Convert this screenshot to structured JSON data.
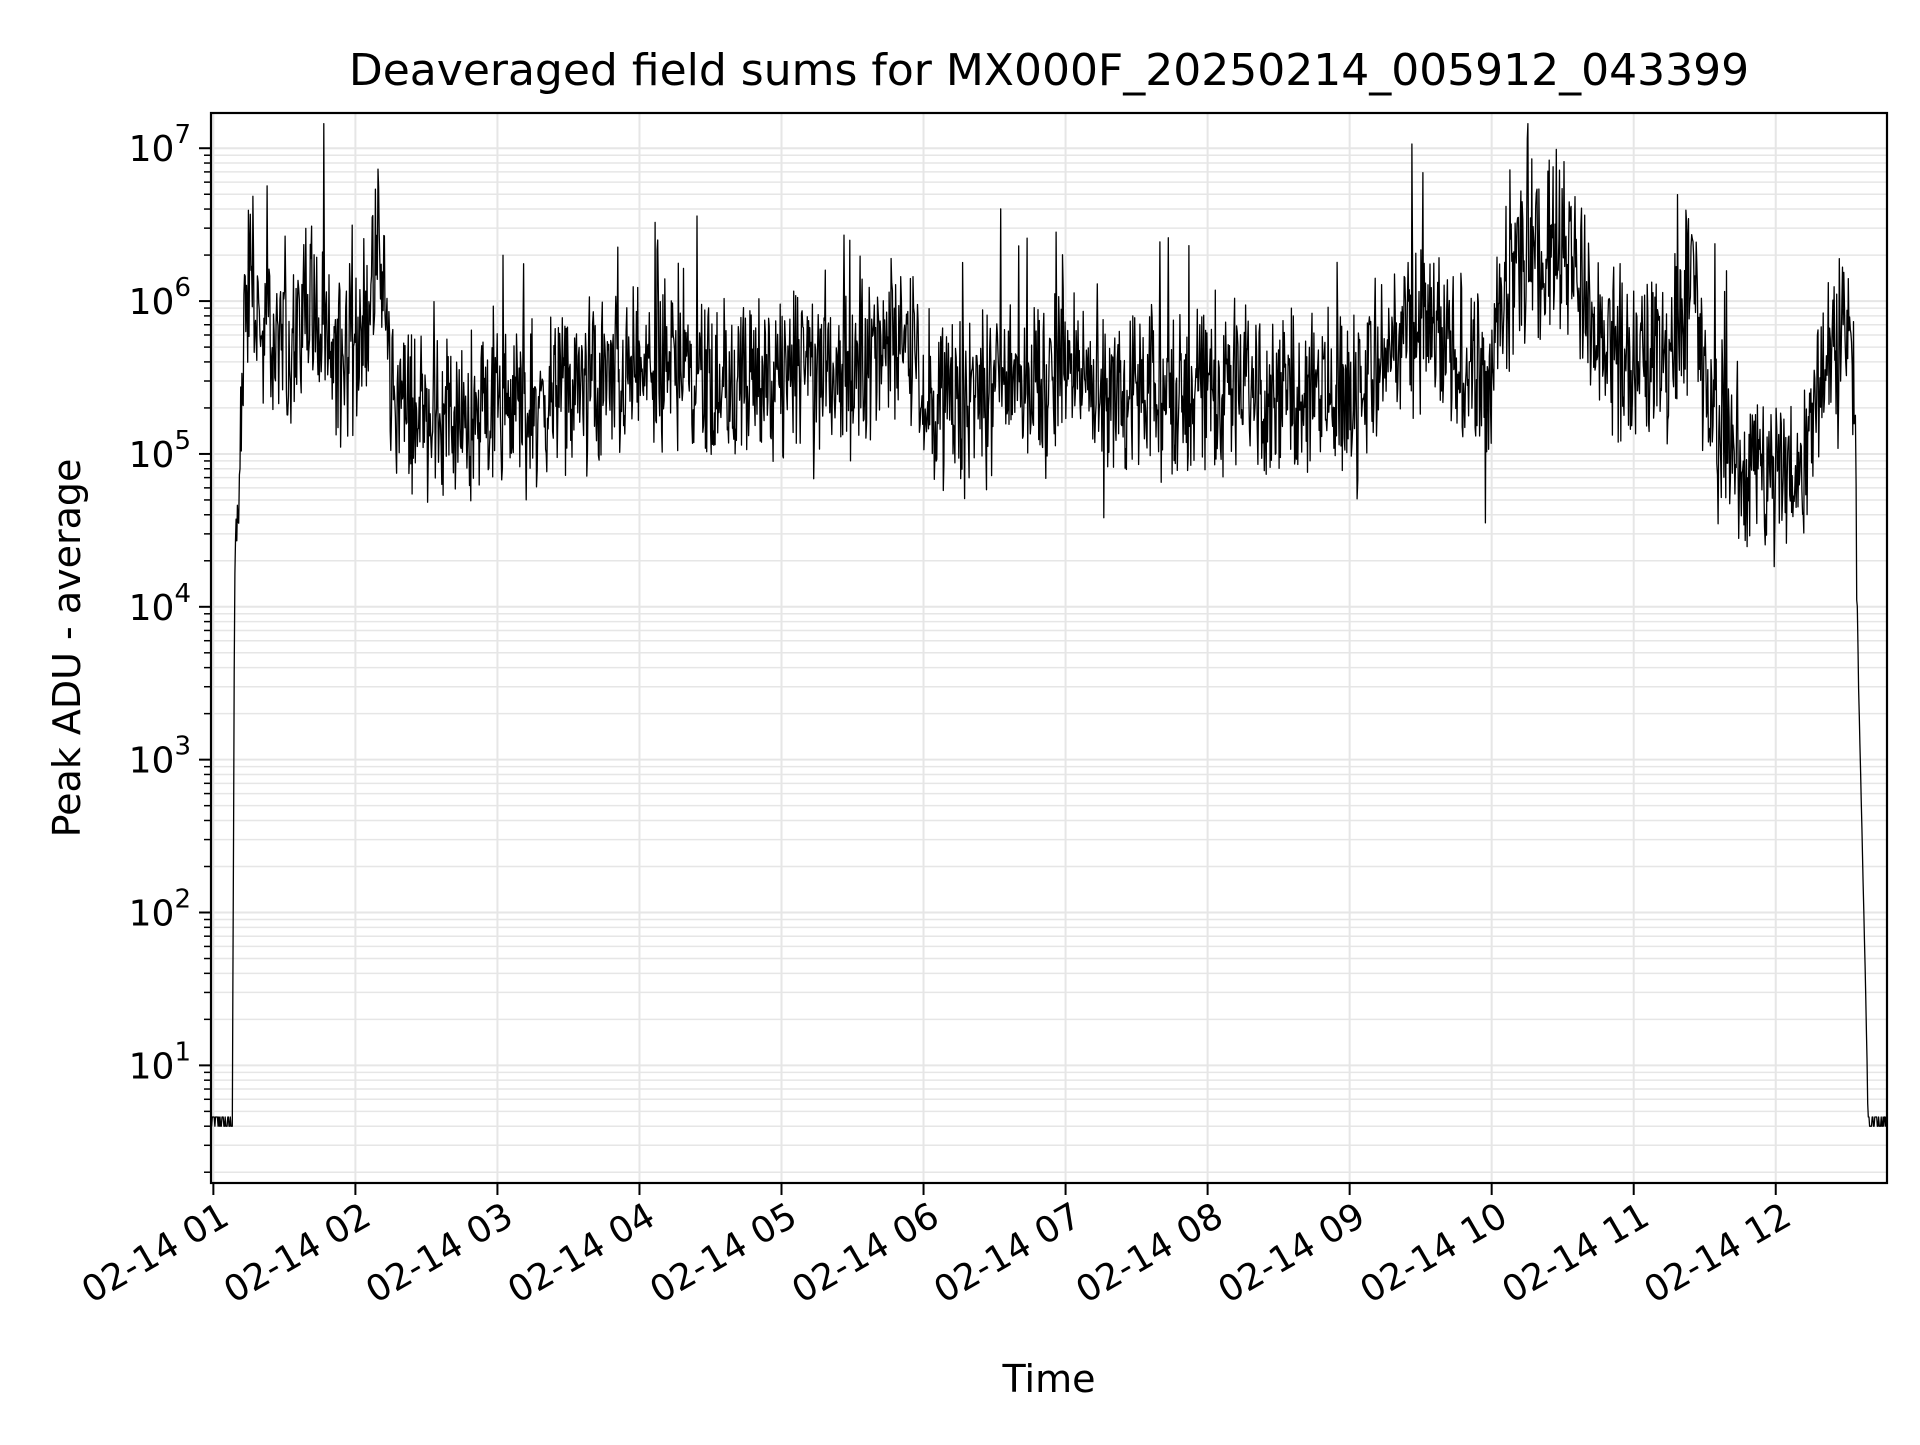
{
  "chart_data": {
    "type": "line",
    "title": "Deaveraged field sums for MX000F_20250214_005912_043399",
    "xlabel": "Time",
    "ylabel": "Peak ADU - average",
    "yscale": "log",
    "ylim": [
      1.7,
      17000000
    ],
    "xlim": [
      "2025-02-14 00:59",
      "2025-02-14 12:47"
    ],
    "grid": true,
    "legend": "none",
    "line_color": "#000000",
    "grid_color": "#e6e6e6",
    "x_ticks": [
      "02-14 01",
      "02-14 02",
      "02-14 03",
      "02-14 04",
      "02-14 05",
      "02-14 06",
      "02-14 07",
      "02-14 08",
      "02-14 09",
      "02-14 10",
      "02-14 11",
      "02-14 12"
    ],
    "y_ticks": [
      {
        "base": "10",
        "exp": "1",
        "value": 10
      },
      {
        "base": "10",
        "exp": "2",
        "value": 100
      },
      {
        "base": "10",
        "exp": "3",
        "value": 1000
      },
      {
        "base": "10",
        "exp": "4",
        "value": 10000
      },
      {
        "base": "10",
        "exp": "5",
        "value": 100000
      },
      {
        "base": "10",
        "exp": "6",
        "value": 1000000
      },
      {
        "base": "10",
        "exp": "7",
        "value": 10000000
      }
    ],
    "series": [
      {
        "x": [
          "2025-02-14 00:59",
          "2025-02-14 01:05",
          "2025-02-14 01:08",
          "2025-02-14 01:09",
          "2025-02-14 01:10",
          "2025-02-14 01:12",
          "2025-02-14 01:14",
          "2025-02-14 01:16",
          "2025-02-14 01:17",
          "2025-02-14 01:19",
          "2025-02-14 01:22",
          "2025-02-14 01:25",
          "2025-02-14 01:30",
          "2025-02-14 01:35",
          "2025-02-14 01:40",
          "2025-02-14 01:45",
          "2025-02-14 01:50",
          "2025-02-14 01:55",
          "2025-02-14 02:00",
          "2025-02-14 02:05",
          "2025-02-14 02:10",
          "2025-02-14 02:15",
          "2025-02-14 02:20",
          "2025-02-14 02:30",
          "2025-02-14 02:40",
          "2025-02-14 02:50",
          "2025-02-14 03:00",
          "2025-02-14 03:15",
          "2025-02-14 03:30",
          "2025-02-14 03:45",
          "2025-02-14 04:00",
          "2025-02-14 04:15",
          "2025-02-14 04:30",
          "2025-02-14 04:45",
          "2025-02-14 05:00",
          "2025-02-14 05:15",
          "2025-02-14 05:30",
          "2025-02-14 05:45",
          "2025-02-14 05:52",
          "2025-02-14 06:00",
          "2025-02-14 06:15",
          "2025-02-14 06:30",
          "2025-02-14 06:45",
          "2025-02-14 07:00",
          "2025-02-14 07:15",
          "2025-02-14 07:30",
          "2025-02-14 07:45",
          "2025-02-14 08:00",
          "2025-02-14 08:15",
          "2025-02-14 08:30",
          "2025-02-14 08:45",
          "2025-02-14 09:00",
          "2025-02-14 09:10",
          "2025-02-14 09:20",
          "2025-02-14 09:30",
          "2025-02-14 09:40",
          "2025-02-14 09:50",
          "2025-02-14 10:00",
          "2025-02-14 10:05",
          "2025-02-14 10:15",
          "2025-02-14 10:25",
          "2025-02-14 10:35",
          "2025-02-14 10:45",
          "2025-02-14 10:55",
          "2025-02-14 11:05",
          "2025-02-14 11:15",
          "2025-02-14 11:25",
          "2025-02-14 11:30",
          "2025-02-14 11:35",
          "2025-02-14 11:40",
          "2025-02-14 11:42",
          "2025-02-14 11:44",
          "2025-02-14 11:45",
          "2025-02-14 11:46",
          "2025-02-14 11:47",
          "2025-02-14 12:00",
          "2025-02-14 12:10",
          "2025-02-14 12:20",
          "2025-02-14 12:28",
          "2025-02-14 12:33",
          "2025-02-14 12:35",
          "2025-02-14 12:38",
          "2025-02-14 12:39",
          "2025-02-14 12:40",
          "2025-02-14 12:47"
        ],
        "y": [
          4,
          4,
          4,
          20000,
          30000,
          300000,
          1000000,
          2000000,
          1500000,
          700000,
          500000,
          600000,
          500000,
          500000,
          1500000,
          600000,
          400000,
          500000,
          500000,
          900000,
          2000000,
          300000,
          200000,
          200000,
          150000,
          180000,
          200000,
          200000,
          250000,
          300000,
          350000,
          400000,
          350000,
          250000,
          300000,
          400000,
          350000,
          500000,
          800000,
          250000,
          200000,
          300000,
          300000,
          350000,
          300000,
          220000,
          250000,
          300000,
          300000,
          250000,
          280000,
          250000,
          350000,
          600000,
          700000,
          500000,
          400000,
          300000,
          1000000,
          2000000,
          2500000,
          2000000,
          500000,
          400000,
          450000,
          500000,
          1500000,
          250000,
          200000,
          100000,
          80000,
          90000,
          100000,
          80000,
          90000,
          80000,
          70000,
          500000,
          700000,
          300000,
          3000,
          30,
          4,
          4,
          4
        ],
        "noise": 0.8
      }
    ]
  }
}
